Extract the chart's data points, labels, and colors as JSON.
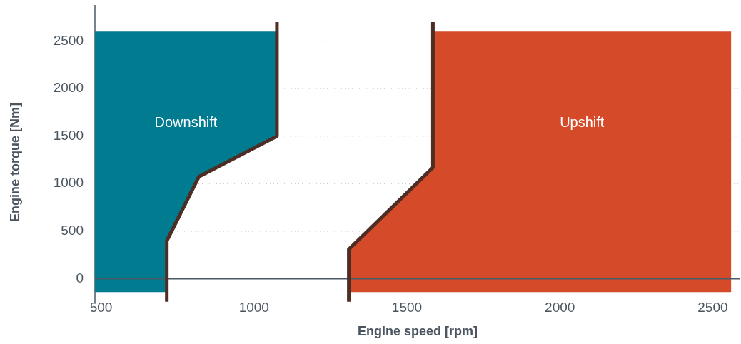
{
  "chart_data": {
    "type": "area",
    "xlabel": "Engine speed [rpm]",
    "ylabel": "Engine torque [Nm]",
    "xlim": [
      480,
      2590
    ],
    "ylim": [
      -250,
      2880
    ],
    "xticks": [
      500,
      1000,
      1500,
      2000,
      2500
    ],
    "yticks": [
      0,
      500,
      1000,
      1500,
      2000,
      2500
    ],
    "grid": "y",
    "legend": false,
    "series": [
      {
        "name": "Downshift",
        "type": "area",
        "color": "#017b8f",
        "x": [
          480,
          480,
          1075,
          1075,
          820,
          715,
          715
        ],
        "values": [
          -140,
          2600,
          2600,
          1500,
          1075,
          400,
          -140
        ]
      },
      {
        "name": "Upshift",
        "type": "area",
        "color": "#d54b29",
        "x": [
          1310,
          1310,
          1585,
          1585,
          2560,
          2560
        ],
        "values": [
          -140,
          310,
          1170,
          2600,
          2600,
          -140
        ]
      },
      {
        "type": "line",
        "color": "#4e2e24",
        "line_style": "solid",
        "x": [
          715,
          715,
          820,
          1075,
          1075
        ],
        "values": [
          -240,
          400,
          1075,
          1500,
          2700
        ]
      },
      {
        "type": "line",
        "color": "#4e2e24",
        "line_style": "solid",
        "x": [
          1310,
          1310,
          1585,
          1585
        ],
        "values": [
          -240,
          310,
          1170,
          2700
        ]
      }
    ]
  }
}
